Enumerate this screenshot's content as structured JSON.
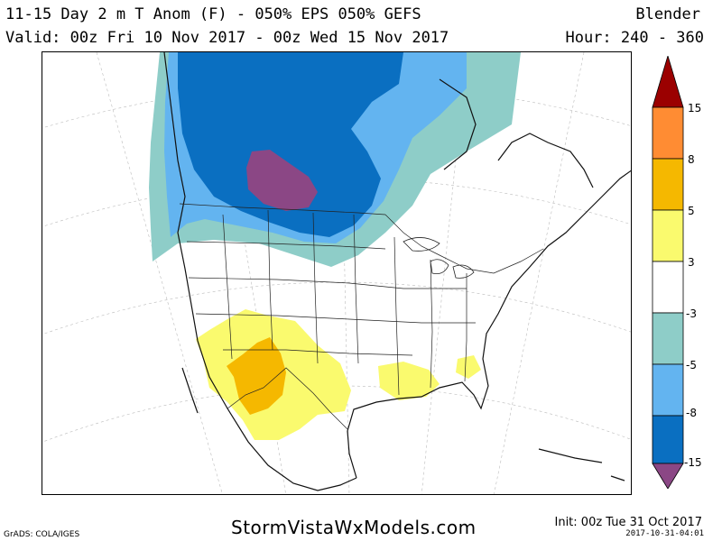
{
  "header": {
    "title": "11-15 Day 2 m T Anom (F) - 050% EPS 050% GEFS",
    "valid": "Valid: 00z Fri 10 Nov 2017 - 00z Wed 15 Nov 2017",
    "model": "Blender",
    "hour": "Hour: 240 - 360"
  },
  "colorbar": {
    "labels": [
      "15",
      "8",
      "5",
      "3",
      "-3",
      "-5",
      "-8",
      "-15"
    ],
    "colors": [
      "#9b0000",
      "#ff8c33",
      "#f5b800",
      "#fafa6e",
      "#ffffff",
      "#8ecdc8",
      "#63b4f0",
      "#0a6fc1",
      "#8b4785"
    ]
  },
  "map": {
    "colors": {
      "cold_light": "#8ecdc8",
      "cold_medium": "#63b4f0",
      "cold_strong": "#0a6fc1",
      "cold_extreme": "#8b4785",
      "warm_light": "#fafa6e",
      "warm_medium": "#f5b800"
    }
  },
  "footer": {
    "grads": "GrADS: COLA/IGES",
    "site": "StormVistaWxModels.com",
    "init": "Init: 00z Tue 31 Oct 2017",
    "stamp": "2017-10-31-04:01"
  }
}
